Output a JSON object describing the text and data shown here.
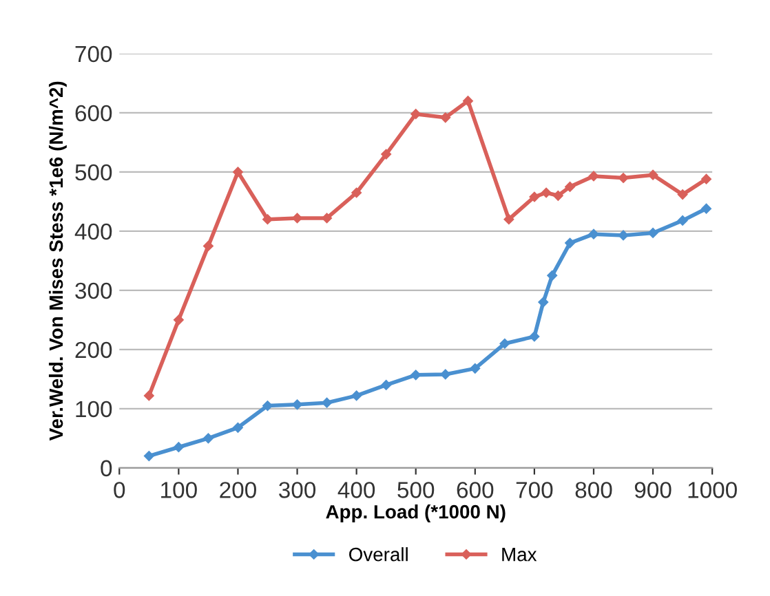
{
  "chart_data": {
    "type": "line",
    "xlabel": "App. Load (*1000 N)",
    "ylabel": "Ver.Weld. Von Mises Stess *1e6 (N/m^2)",
    "xlim": [
      0,
      1000
    ],
    "xticks": [
      0,
      100,
      200,
      300,
      400,
      500,
      600,
      700,
      800,
      900,
      1000
    ],
    "ylim": [
      0,
      700
    ],
    "yticks": [
      0,
      100,
      200,
      300,
      400,
      500,
      600,
      700
    ],
    "grid": "y",
    "legend": "bottom",
    "marker": "diamond",
    "line_style": "solid",
    "series": [
      {
        "name": "Overall",
        "color": "#4a90d0",
        "x": [
          50,
          100,
          150,
          200,
          250,
          300,
          350,
          400,
          450,
          500,
          550,
          600,
          650,
          700,
          715,
          730,
          760,
          800,
          850,
          900,
          950,
          990
        ],
        "values": [
          20,
          35,
          50,
          68,
          105,
          107,
          110,
          122,
          140,
          157,
          158,
          168,
          210,
          222,
          280,
          325,
          380,
          395,
          393,
          397,
          418,
          438
        ]
      },
      {
        "name": "Max",
        "color": "#d9605a",
        "x": [
          50,
          100,
          150,
          200,
          250,
          300,
          350,
          400,
          450,
          500,
          550,
          588,
          657,
          700,
          720,
          740,
          760,
          800,
          850,
          900,
          950,
          990
        ],
        "values": [
          122,
          250,
          375,
          500,
          420,
          422,
          422,
          465,
          530,
          598,
          592,
          620,
          420,
          458,
          465,
          460,
          475,
          493,
          490,
          495,
          462,
          488
        ]
      }
    ]
  }
}
